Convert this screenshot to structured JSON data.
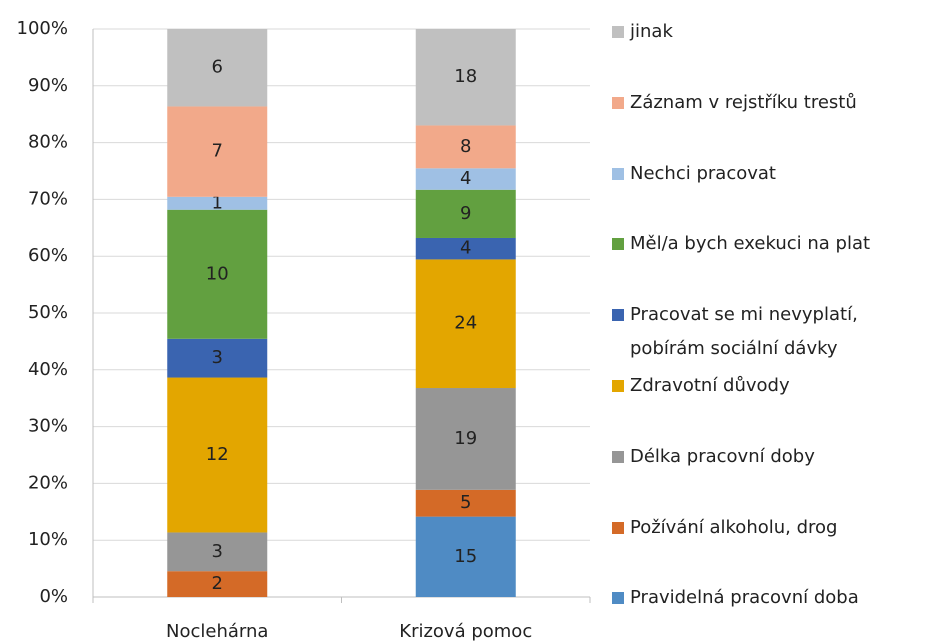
{
  "chart_data": {
    "type": "bar",
    "stacked": "percent",
    "categories": [
      "Noclehárna",
      "Krizová pomoc"
    ],
    "series": [
      {
        "name": "Pravidelná pracovní doba",
        "color": "#4f8bc4",
        "values": [
          0,
          15
        ]
      },
      {
        "name": "Požívání alkoholu, drog",
        "color": "#d46a27",
        "values": [
          2,
          5
        ]
      },
      {
        "name": "Délka pracovní doby",
        "color": "#969696",
        "values": [
          3,
          19
        ]
      },
      {
        "name": "Zdravotní důvody",
        "color": "#e3a600",
        "values": [
          12,
          24
        ]
      },
      {
        "name": "Pracovat se mi nevyplatí, pobírám sociální dávky",
        "color": "#3a64b0",
        "values": [
          3,
          4
        ]
      },
      {
        "name": "Měl/a bych exekuci na plat",
        "color": "#62a040",
        "values": [
          10,
          9
        ]
      },
      {
        "name": "Nechci pracovat",
        "color": "#9fc0e4",
        "values": [
          1,
          4
        ]
      },
      {
        "name": "Záznam v rejstříku trestů",
        "color": "#f2a98a",
        "values": [
          7,
          8
        ]
      },
      {
        "name": "jinak",
        "color": "#c0c0c0",
        "values": [
          6,
          18
        ]
      }
    ],
    "ylim": [
      0,
      100
    ],
    "yticks": [
      {
        "value": 0,
        "label": "0%"
      },
      {
        "value": 10,
        "label": "10%"
      },
      {
        "value": 20,
        "label": "20%"
      },
      {
        "value": 30,
        "label": "30%"
      },
      {
        "value": 40,
        "label": "40%"
      },
      {
        "value": 50,
        "label": "50%"
      },
      {
        "value": 60,
        "label": "60%"
      },
      {
        "value": 70,
        "label": "70%"
      },
      {
        "value": 80,
        "label": "80%"
      },
      {
        "value": 90,
        "label": "90%"
      },
      {
        "value": 100,
        "label": "100%"
      }
    ],
    "grid": true,
    "legend": "right"
  }
}
